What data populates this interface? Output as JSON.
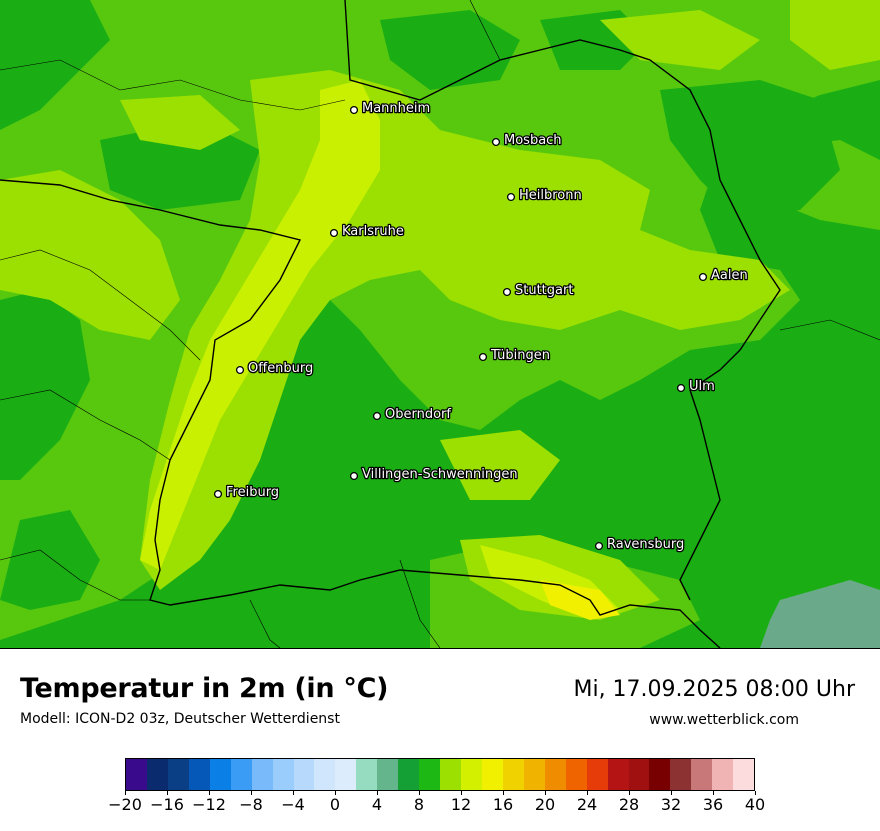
{
  "map": {
    "colors": {
      "base": "#1aae14",
      "mid_green": "#58c80f",
      "light_green": "#9be000",
      "yellow_green": "#c8f000",
      "yellow": "#f0f000",
      "teal": "#6aaa8a"
    },
    "cities": [
      {
        "name": "Mannheim",
        "icon": "city-dot-icon"
      },
      {
        "name": "Mosbach",
        "icon": "city-dot-icon"
      },
      {
        "name": "Heilbronn",
        "icon": "city-dot-icon"
      },
      {
        "name": "Karlsruhe",
        "icon": "city-dot-icon"
      },
      {
        "name": "Aalen",
        "icon": "city-dot-icon"
      },
      {
        "name": "Stuttgart",
        "icon": "city-dot-icon"
      },
      {
        "name": "Tübingen",
        "icon": "city-dot-icon"
      },
      {
        "name": "Offenburg",
        "icon": "city-dot-icon"
      },
      {
        "name": "Ulm",
        "icon": "city-dot-icon"
      },
      {
        "name": "Oberndorf",
        "icon": "city-dot-icon"
      },
      {
        "name": "Villingen-Schwenningen",
        "icon": "city-dot-icon"
      },
      {
        "name": "Freiburg",
        "icon": "city-dot-icon"
      },
      {
        "name": "Ravensburg",
        "icon": "city-dot-icon"
      }
    ]
  },
  "footer": {
    "title": "Temperatur in 2m (in °C)",
    "model": "Modell: ICON-D2 03z, Deutscher Wetterdienst",
    "datetime": "Mi, 17.09.2025 08:00 Uhr",
    "website": "www.wetterblick.com"
  },
  "legend": {
    "min": -20,
    "max": 40,
    "ticks": [
      "−20",
      "−16",
      "−12",
      "−8",
      "−4",
      "0",
      "4",
      "8",
      "12",
      "16",
      "20",
      "24",
      "28",
      "32",
      "36",
      "40"
    ],
    "colors": [
      "#3a0a8c",
      "#0a2c6e",
      "#0a3f86",
      "#0658b8",
      "#0a80e6",
      "#3a9cf5",
      "#78bafa",
      "#9accfc",
      "#b6d9fc",
      "#d0e6fc",
      "#dcecfc",
      "#96dcc0",
      "#64b48c",
      "#14a034",
      "#1eb814",
      "#9be000",
      "#d2f000",
      "#f0f000",
      "#f0d200",
      "#f0b400",
      "#f08c00",
      "#f06400",
      "#e63c0a",
      "#b41414",
      "#a01010",
      "#780000",
      "#8c3232",
      "#c87878",
      "#f0b4b4",
      "#fcdcdc"
    ]
  }
}
